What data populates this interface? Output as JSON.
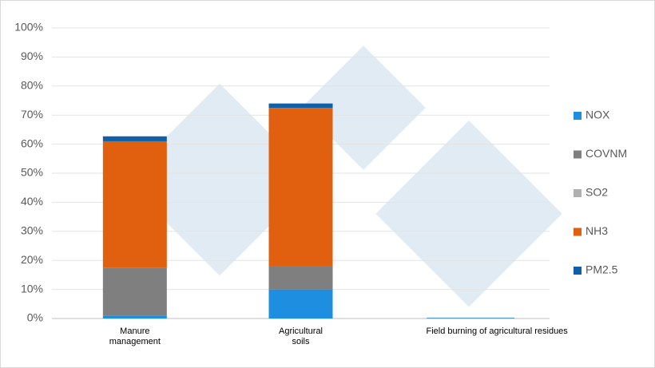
{
  "chart_data": {
    "type": "stacked_bar",
    "categories": [
      "Manure management",
      "Agricultural soils",
      "Field burning of agricultural residues"
    ],
    "series": [
      {
        "name": "NOX",
        "color": "#1e8fe0",
        "values": [
          1,
          10,
          0.2
        ]
      },
      {
        "name": "COVNM",
        "color": "#7f7f7f",
        "values": [
          16.5,
          8,
          0.1
        ]
      },
      {
        "name": "SO2",
        "color": "#b0b0b0",
        "values": [
          0,
          0,
          0
        ]
      },
      {
        "name": "NH3",
        "color": "#e06010",
        "values": [
          43.5,
          54.5,
          0
        ]
      },
      {
        "name": "PM2.5",
        "color": "#1060a8",
        "values": [
          1.7,
          1.5,
          0
        ]
      }
    ],
    "ylim": [
      0,
      100
    ],
    "yticks": [
      {
        "value": 0,
        "label": "0%"
      },
      {
        "value": 10,
        "label": "10%"
      },
      {
        "value": 20,
        "label": "20%"
      },
      {
        "value": 30,
        "label": "30%"
      },
      {
        "value": 40,
        "label": "40%"
      },
      {
        "value": 50,
        "label": "50%"
      },
      {
        "value": 60,
        "label": "60%"
      },
      {
        "value": 70,
        "label": "70%"
      },
      {
        "value": 80,
        "label": "80%"
      },
      {
        "value": 90,
        "label": "90%"
      },
      {
        "value": 100,
        "label": "100%"
      }
    ],
    "grid": true,
    "legend": "right"
  }
}
